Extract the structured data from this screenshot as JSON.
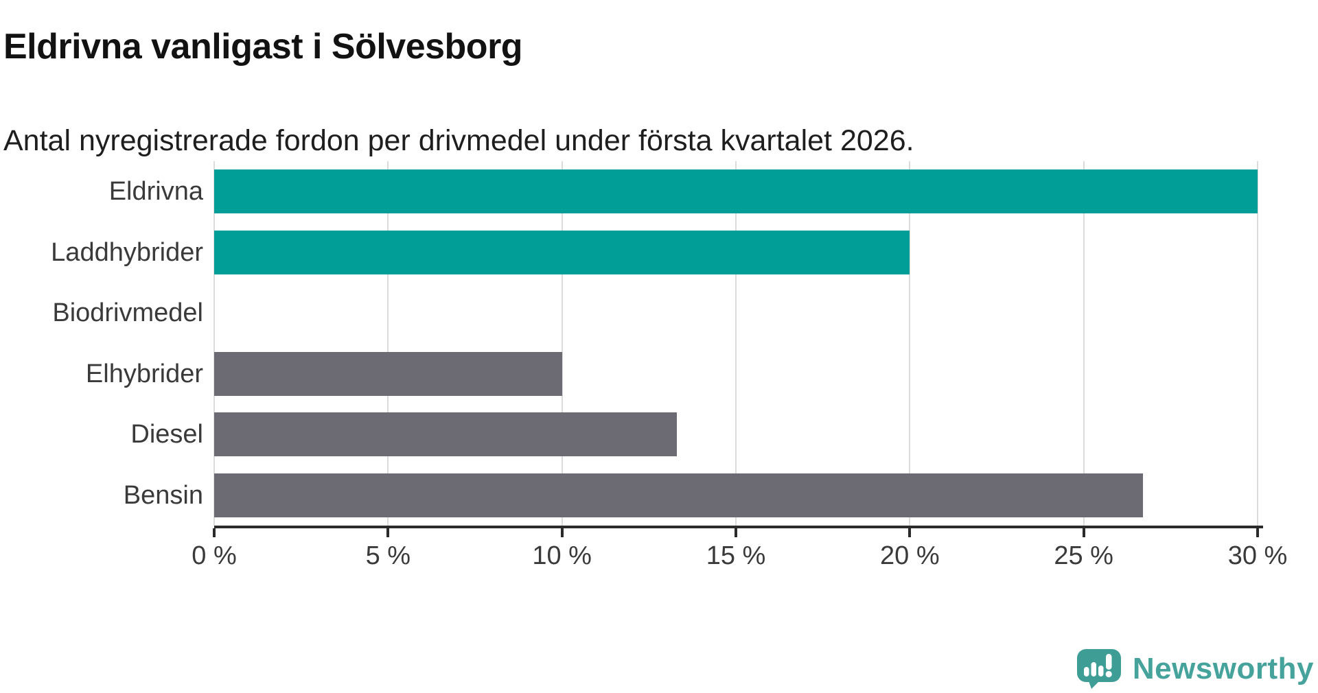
{
  "chart_data": {
    "type": "bar",
    "orientation": "horizontal",
    "title": "Eldrivna vanligast i Sölvesborg",
    "subtitle": "Antal nyregistrerade fordon per drivmedel under första kvartalet 2026.",
    "categories": [
      "Eldrivna",
      "Laddhybrider",
      "Biodrivmedel",
      "Elhybrider",
      "Diesel",
      "Bensin"
    ],
    "values": [
      30,
      20,
      0,
      10,
      13.3,
      26.7
    ],
    "unit": "%",
    "xlabel": "",
    "ylabel": "",
    "xlim": [
      0,
      30
    ],
    "x_ticks": [
      0,
      5,
      10,
      15,
      20,
      25,
      30
    ],
    "x_tick_labels": [
      "0 %",
      "5 %",
      "10 %",
      "15 %",
      "20 %",
      "25 %",
      "30 %"
    ],
    "bar_colors": [
      "#009E96",
      "#009E96",
      "#6C6B73",
      "#6C6B73",
      "#6C6B73",
      "#6C6B73"
    ],
    "highlight_color": "#009E96",
    "base_color": "#6C6B73",
    "grid": true,
    "gridline_color": "#DBDBDB",
    "axis_color": "#2B2B2B",
    "tick_label_color": "#3A3A3A",
    "category_label_color": "#3A3A3A",
    "legend": false
  },
  "footer": {
    "brand": "Newsworthy",
    "brand_text_color": "#45A39B",
    "brand_icon_color": "#3E9E96",
    "logo_icon": "newsworthy-chart-bubble-icon"
  }
}
